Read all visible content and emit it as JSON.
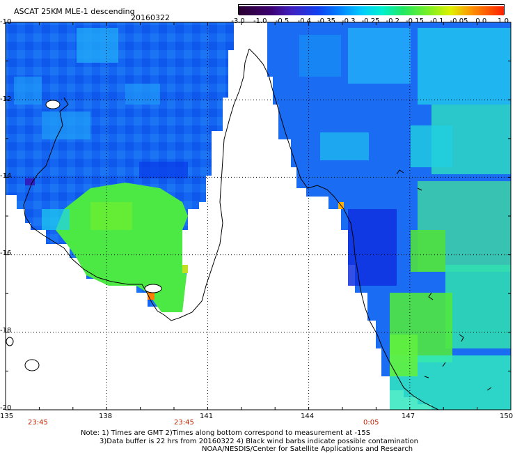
{
  "header": {
    "title": "ASCAT 25KM MLE-1  descending",
    "date": "20160322"
  },
  "colorbar": {
    "tick_labels": [
      "-3.0",
      "-1.0",
      "-0.5",
      "-0.4",
      "-0.35",
      "-0.3",
      "-0.25",
      "-0.2",
      "-0.15",
      "-0.1",
      "-0.05",
      "0.0",
      "1.0"
    ],
    "colors": [
      "#1a0020",
      "#3a0060",
      "#4a10a0",
      "#2030d0",
      "#0060ff",
      "#00a0ff",
      "#00e0ff",
      "#00f0a0",
      "#40e040",
      "#a0f020",
      "#f0f000",
      "#ff8000",
      "#ff2000"
    ]
  },
  "map": {
    "lat_labels": [
      "-10",
      "-12",
      "-14",
      "-16",
      "-18",
      "-20"
    ],
    "lon_labels": [
      "135",
      "138",
      "141",
      "144",
      "147",
      "150"
    ],
    "time_labels": [
      "23:45",
      "23:45",
      "0:05"
    ],
    "ocean_blue": "#1060f0",
    "ocean_green": "#50e840",
    "land_color": "#ffffff",
    "grid_style": "dotted"
  },
  "notes": {
    "line1": "Note: 1) Times are GMT 2)Times along bottom correspond to measurement at -15S",
    "line2": "3)Data buffer is 22 hrs from 20160322 4) Black wind barbs indicate possible contamination",
    "line3": "NOAA/NESDIS/Center for Satellite Applications and Research"
  }
}
